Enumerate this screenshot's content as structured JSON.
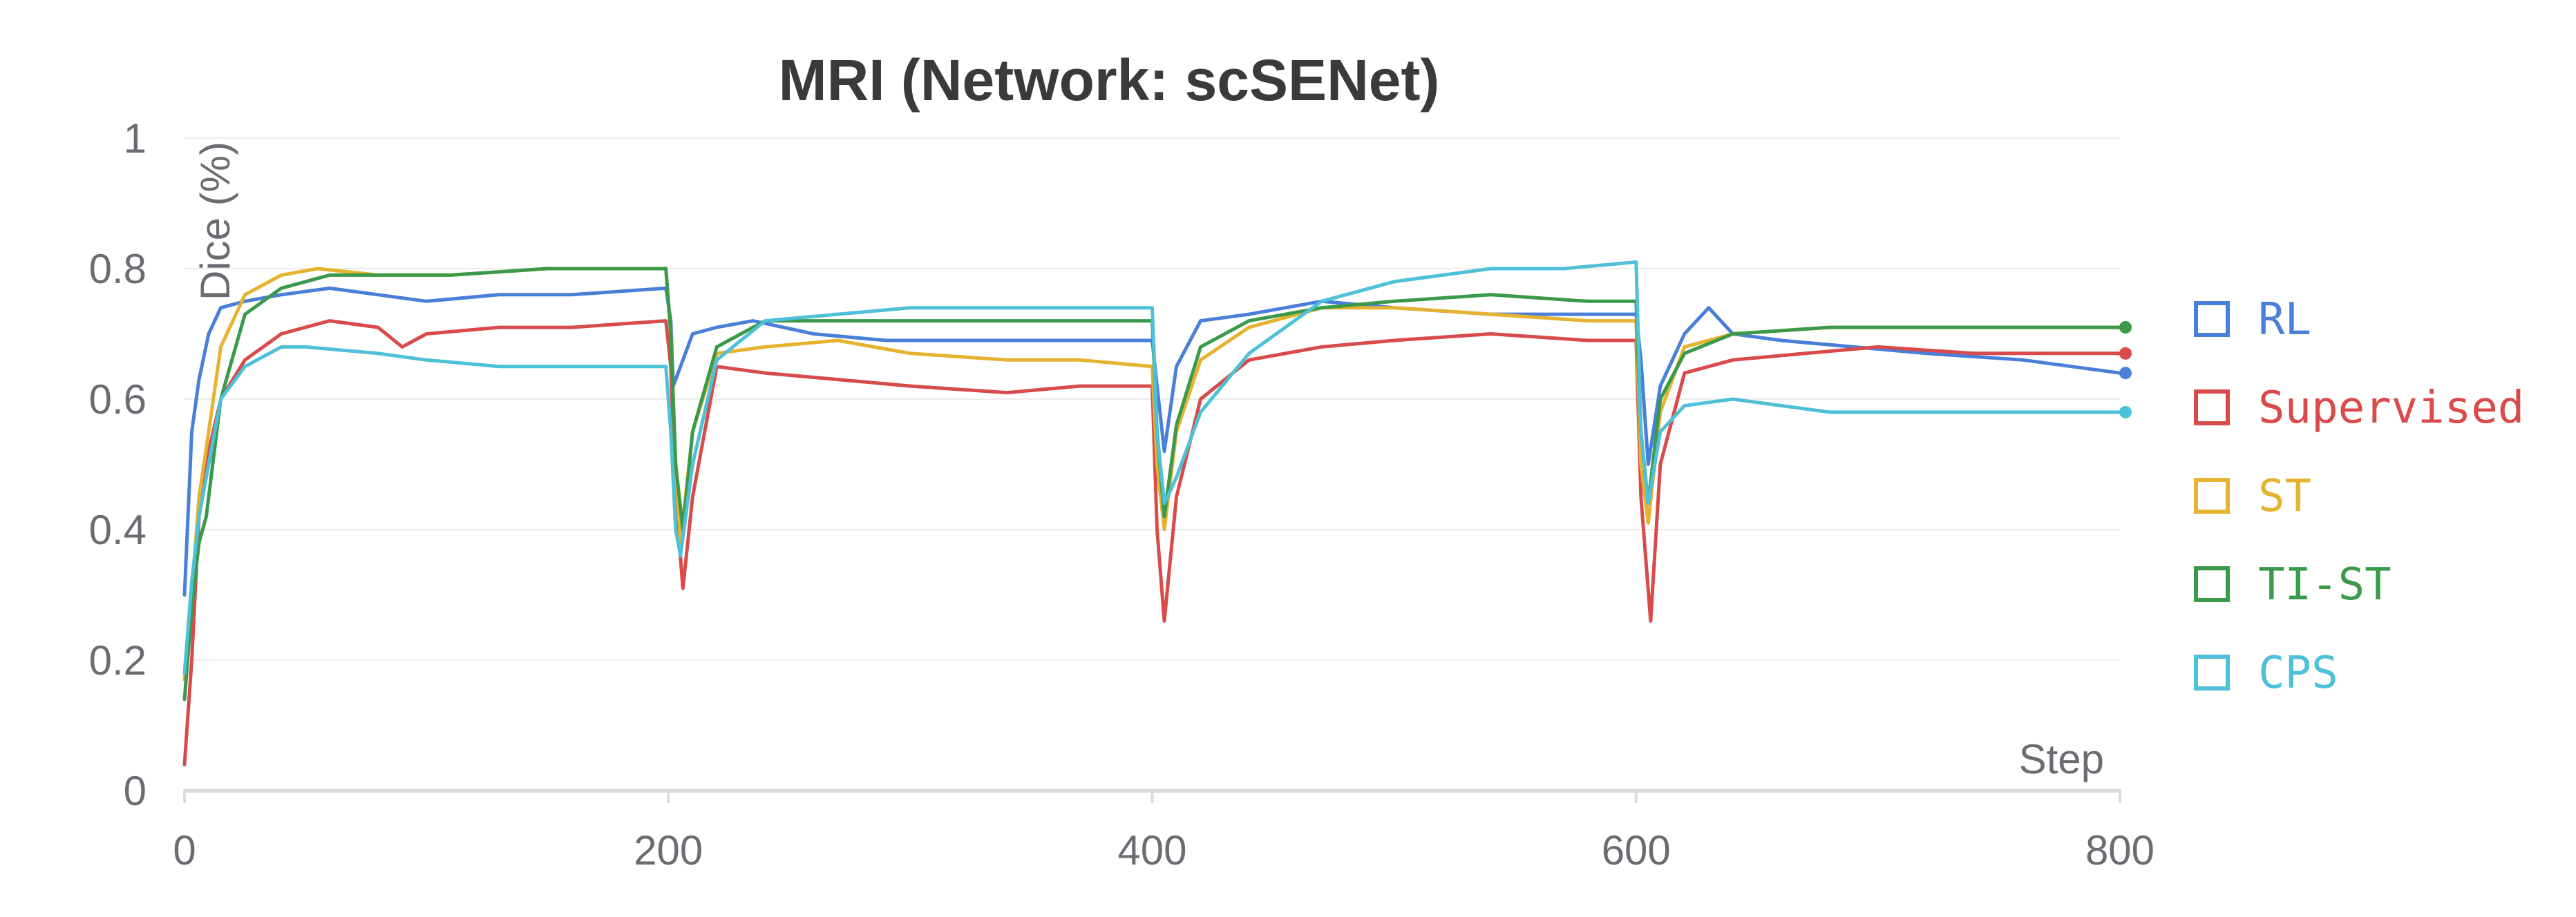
{
  "chart_data": {
    "type": "line",
    "title": "MRI (Network: scSENet)",
    "xlabel": "Step",
    "ylabel": "Dice (%)",
    "xlim": [
      0,
      800
    ],
    "ylim": [
      0,
      1
    ],
    "xticks": [
      0,
      200,
      400,
      600,
      800
    ],
    "xtick_labels": [
      "0",
      "200",
      "400",
      "600",
      "800"
    ],
    "yticks": [
      0,
      0.2,
      0.4,
      0.6,
      0.8,
      1
    ],
    "ytick_labels": [
      "0",
      "0.2",
      "0.4",
      "0.6",
      "0.8",
      "1"
    ],
    "grid": true,
    "legend_position": "right",
    "series": [
      {
        "name": "RL",
        "color": "#4a7fd9",
        "points": [
          [
            0,
            0.3
          ],
          [
            3,
            0.55
          ],
          [
            6,
            0.63
          ],
          [
            10,
            0.7
          ],
          [
            15,
            0.74
          ],
          [
            25,
            0.75
          ],
          [
            40,
            0.76
          ],
          [
            60,
            0.77
          ],
          [
            80,
            0.76
          ],
          [
            100,
            0.75
          ],
          [
            130,
            0.76
          ],
          [
            160,
            0.76
          ],
          [
            199,
            0.77
          ],
          [
            201,
            0.72
          ],
          [
            202,
            0.62
          ],
          [
            205,
            0.65
          ],
          [
            210,
            0.7
          ],
          [
            220,
            0.71
          ],
          [
            235,
            0.72
          ],
          [
            260,
            0.7
          ],
          [
            290,
            0.69
          ],
          [
            320,
            0.69
          ],
          [
            360,
            0.69
          ],
          [
            400,
            0.69
          ],
          [
            402,
            0.62
          ],
          [
            405,
            0.52
          ],
          [
            410,
            0.65
          ],
          [
            420,
            0.72
          ],
          [
            440,
            0.73
          ],
          [
            470,
            0.75
          ],
          [
            500,
            0.74
          ],
          [
            540,
            0.73
          ],
          [
            580,
            0.73
          ],
          [
            600,
            0.73
          ],
          [
            602,
            0.66
          ],
          [
            605,
            0.5
          ],
          [
            610,
            0.62
          ],
          [
            620,
            0.7
          ],
          [
            630,
            0.74
          ],
          [
            640,
            0.7
          ],
          [
            660,
            0.69
          ],
          [
            690,
            0.68
          ],
          [
            720,
            0.67
          ],
          [
            760,
            0.66
          ],
          [
            800,
            0.64
          ]
        ]
      },
      {
        "name": "Supervised",
        "color": "#d94a4a",
        "points": [
          [
            0,
            0.04
          ],
          [
            3,
            0.2
          ],
          [
            6,
            0.42
          ],
          [
            10,
            0.52
          ],
          [
            15,
            0.6
          ],
          [
            25,
            0.66
          ],
          [
            40,
            0.7
          ],
          [
            60,
            0.72
          ],
          [
            80,
            0.71
          ],
          [
            90,
            0.68
          ],
          [
            100,
            0.7
          ],
          [
            130,
            0.71
          ],
          [
            160,
            0.71
          ],
          [
            199,
            0.72
          ],
          [
            201,
            0.65
          ],
          [
            203,
            0.45
          ],
          [
            206,
            0.31
          ],
          [
            210,
            0.45
          ],
          [
            220,
            0.65
          ],
          [
            240,
            0.64
          ],
          [
            270,
            0.63
          ],
          [
            300,
            0.62
          ],
          [
            340,
            0.61
          ],
          [
            370,
            0.62
          ],
          [
            400,
            0.62
          ],
          [
            402,
            0.4
          ],
          [
            405,
            0.26
          ],
          [
            410,
            0.45
          ],
          [
            420,
            0.6
          ],
          [
            440,
            0.66
          ],
          [
            470,
            0.68
          ],
          [
            500,
            0.69
          ],
          [
            540,
            0.7
          ],
          [
            580,
            0.69
          ],
          [
            600,
            0.69
          ],
          [
            602,
            0.45
          ],
          [
            606,
            0.26
          ],
          [
            610,
            0.5
          ],
          [
            620,
            0.64
          ],
          [
            640,
            0.66
          ],
          [
            670,
            0.67
          ],
          [
            700,
            0.68
          ],
          [
            740,
            0.67
          ],
          [
            780,
            0.67
          ],
          [
            800,
            0.67
          ]
        ]
      },
      {
        "name": "ST",
        "color": "#e6b330",
        "points": [
          [
            0,
            0.17
          ],
          [
            3,
            0.3
          ],
          [
            6,
            0.45
          ],
          [
            10,
            0.55
          ],
          [
            15,
            0.68
          ],
          [
            25,
            0.76
          ],
          [
            40,
            0.79
          ],
          [
            55,
            0.8
          ],
          [
            80,
            0.79
          ],
          [
            110,
            0.79
          ],
          [
            150,
            0.8
          ],
          [
            199,
            0.8
          ],
          [
            201,
            0.7
          ],
          [
            203,
            0.5
          ],
          [
            205,
            0.38
          ],
          [
            210,
            0.55
          ],
          [
            220,
            0.67
          ],
          [
            240,
            0.68
          ],
          [
            270,
            0.69
          ],
          [
            300,
            0.67
          ],
          [
            340,
            0.66
          ],
          [
            370,
            0.66
          ],
          [
            400,
            0.65
          ],
          [
            402,
            0.5
          ],
          [
            405,
            0.4
          ],
          [
            410,
            0.55
          ],
          [
            420,
            0.66
          ],
          [
            440,
            0.71
          ],
          [
            470,
            0.74
          ],
          [
            500,
            0.74
          ],
          [
            540,
            0.73
          ],
          [
            580,
            0.72
          ],
          [
            600,
            0.72
          ],
          [
            602,
            0.5
          ],
          [
            605,
            0.41
          ],
          [
            610,
            0.58
          ],
          [
            620,
            0.68
          ],
          [
            640,
            0.7
          ],
          [
            680,
            0.71
          ],
          [
            720,
            0.71
          ],
          [
            760,
            0.71
          ],
          [
            800,
            0.71
          ]
        ]
      },
      {
        "name": "TI-ST",
        "color": "#3a9a4a",
        "points": [
          [
            0,
            0.14
          ],
          [
            3,
            0.28
          ],
          [
            6,
            0.38
          ],
          [
            9,
            0.42
          ],
          [
            15,
            0.6
          ],
          [
            25,
            0.73
          ],
          [
            40,
            0.77
          ],
          [
            60,
            0.79
          ],
          [
            80,
            0.79
          ],
          [
            110,
            0.79
          ],
          [
            150,
            0.8
          ],
          [
            199,
            0.8
          ],
          [
            201,
            0.7
          ],
          [
            203,
            0.5
          ],
          [
            206,
            0.4
          ],
          [
            210,
            0.55
          ],
          [
            220,
            0.68
          ],
          [
            240,
            0.72
          ],
          [
            270,
            0.72
          ],
          [
            300,
            0.72
          ],
          [
            340,
            0.72
          ],
          [
            370,
            0.72
          ],
          [
            400,
            0.72
          ],
          [
            402,
            0.55
          ],
          [
            405,
            0.42
          ],
          [
            410,
            0.56
          ],
          [
            420,
            0.68
          ],
          [
            440,
            0.72
          ],
          [
            470,
            0.74
          ],
          [
            500,
            0.75
          ],
          [
            540,
            0.76
          ],
          [
            580,
            0.75
          ],
          [
            600,
            0.75
          ],
          [
            602,
            0.55
          ],
          [
            605,
            0.44
          ],
          [
            610,
            0.6
          ],
          [
            620,
            0.67
          ],
          [
            640,
            0.7
          ],
          [
            680,
            0.71
          ],
          [
            720,
            0.71
          ],
          [
            760,
            0.71
          ],
          [
            800,
            0.71
          ]
        ]
      },
      {
        "name": "CPS",
        "color": "#4ec0d8",
        "points": [
          [
            0,
            0.18
          ],
          [
            3,
            0.32
          ],
          [
            6,
            0.42
          ],
          [
            10,
            0.5
          ],
          [
            15,
            0.6
          ],
          [
            25,
            0.65
          ],
          [
            40,
            0.68
          ],
          [
            50,
            0.68
          ],
          [
            80,
            0.67
          ],
          [
            100,
            0.66
          ],
          [
            130,
            0.65
          ],
          [
            160,
            0.65
          ],
          [
            199,
            0.65
          ],
          [
            201,
            0.55
          ],
          [
            203,
            0.4
          ],
          [
            205,
            0.36
          ],
          [
            210,
            0.5
          ],
          [
            220,
            0.66
          ],
          [
            240,
            0.72
          ],
          [
            270,
            0.73
          ],
          [
            300,
            0.74
          ],
          [
            340,
            0.74
          ],
          [
            370,
            0.74
          ],
          [
            400,
            0.74
          ],
          [
            402,
            0.55
          ],
          [
            405,
            0.44
          ],
          [
            410,
            0.48
          ],
          [
            420,
            0.58
          ],
          [
            440,
            0.67
          ],
          [
            470,
            0.75
          ],
          [
            500,
            0.78
          ],
          [
            540,
            0.8
          ],
          [
            570,
            0.8
          ],
          [
            600,
            0.81
          ],
          [
            602,
            0.55
          ],
          [
            605,
            0.44
          ],
          [
            610,
            0.55
          ],
          [
            620,
            0.59
          ],
          [
            640,
            0.6
          ],
          [
            680,
            0.58
          ],
          [
            720,
            0.58
          ],
          [
            760,
            0.58
          ],
          [
            800,
            0.58
          ]
        ]
      }
    ]
  }
}
